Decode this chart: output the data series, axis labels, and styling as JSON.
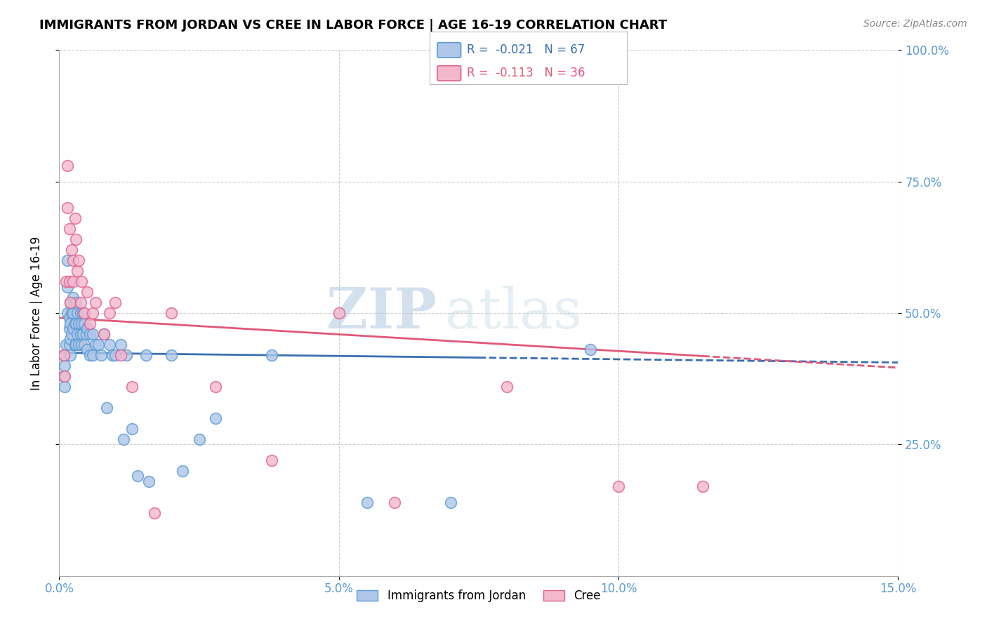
{
  "title": "IMMIGRANTS FROM JORDAN VS CREE IN LABOR FORCE | AGE 16-19 CORRELATION CHART",
  "source": "Source: ZipAtlas.com",
  "ylabel": "In Labor Force | Age 16-19",
  "xlim": [
    0.0,
    0.15
  ],
  "ylim": [
    0.0,
    1.0
  ],
  "xtick_labels": [
    "0.0%",
    "5.0%",
    "10.0%",
    "15.0%"
  ],
  "xtick_vals": [
    0.0,
    0.05,
    0.1,
    0.15
  ],
  "ytick_labels": [
    "25.0%",
    "50.0%",
    "75.0%",
    "100.0%"
  ],
  "ytick_vals": [
    0.25,
    0.5,
    0.75,
    1.0
  ],
  "jordan_color": "#aec6e8",
  "cree_color": "#f4b8cc",
  "jordan_edge": "#5b9bd5",
  "cree_edge": "#e06090",
  "jordan_line_color": "#3a6fb0",
  "cree_line_color": "#e05878",
  "jordan_R": -0.021,
  "jordan_N": 67,
  "cree_R": -0.113,
  "cree_N": 36,
  "jordan_x": [
    0.0008,
    0.0008,
    0.001,
    0.001,
    0.0012,
    0.0015,
    0.0015,
    0.0015,
    0.0018,
    0.0018,
    0.0018,
    0.002,
    0.002,
    0.002,
    0.002,
    0.0022,
    0.0022,
    0.0025,
    0.0025,
    0.0025,
    0.0028,
    0.0028,
    0.003,
    0.003,
    0.003,
    0.0032,
    0.0032,
    0.0035,
    0.0035,
    0.0038,
    0.0038,
    0.004,
    0.004,
    0.0042,
    0.0042,
    0.0045,
    0.0045,
    0.0048,
    0.005,
    0.005,
    0.0055,
    0.0055,
    0.006,
    0.006,
    0.0065,
    0.007,
    0.0075,
    0.008,
    0.0085,
    0.009,
    0.0095,
    0.01,
    0.011,
    0.0115,
    0.012,
    0.013,
    0.014,
    0.0155,
    0.016,
    0.02,
    0.022,
    0.025,
    0.028,
    0.038,
    0.055,
    0.07,
    0.095
  ],
  "jordan_y": [
    0.42,
    0.38,
    0.4,
    0.36,
    0.44,
    0.6,
    0.55,
    0.5,
    0.49,
    0.47,
    0.44,
    0.52,
    0.48,
    0.45,
    0.42,
    0.5,
    0.46,
    0.53,
    0.5,
    0.47,
    0.48,
    0.44,
    0.52,
    0.48,
    0.44,
    0.5,
    0.46,
    0.48,
    0.44,
    0.5,
    0.46,
    0.48,
    0.44,
    0.5,
    0.46,
    0.48,
    0.44,
    0.46,
    0.47,
    0.43,
    0.46,
    0.42,
    0.46,
    0.42,
    0.44,
    0.44,
    0.42,
    0.46,
    0.32,
    0.44,
    0.42,
    0.42,
    0.44,
    0.26,
    0.42,
    0.28,
    0.19,
    0.42,
    0.18,
    0.42,
    0.2,
    0.26,
    0.3,
    0.42,
    0.14,
    0.14,
    0.43
  ],
  "cree_x": [
    0.0008,
    0.001,
    0.0012,
    0.0015,
    0.0015,
    0.0018,
    0.0018,
    0.002,
    0.0022,
    0.0025,
    0.0025,
    0.0028,
    0.003,
    0.0032,
    0.0035,
    0.0038,
    0.004,
    0.0045,
    0.005,
    0.0055,
    0.006,
    0.0065,
    0.008,
    0.009,
    0.01,
    0.011,
    0.013,
    0.017,
    0.02,
    0.028,
    0.038,
    0.05,
    0.06,
    0.08,
    0.1,
    0.115
  ],
  "cree_y": [
    0.42,
    0.38,
    0.56,
    0.78,
    0.7,
    0.66,
    0.56,
    0.52,
    0.62,
    0.6,
    0.56,
    0.68,
    0.64,
    0.58,
    0.6,
    0.52,
    0.56,
    0.5,
    0.54,
    0.48,
    0.5,
    0.52,
    0.46,
    0.5,
    0.52,
    0.42,
    0.36,
    0.12,
    0.5,
    0.36,
    0.22,
    0.5,
    0.14,
    0.36,
    0.17,
    0.17
  ],
  "watermark_ZIP": "ZIP",
  "watermark_atlas": "atlas"
}
